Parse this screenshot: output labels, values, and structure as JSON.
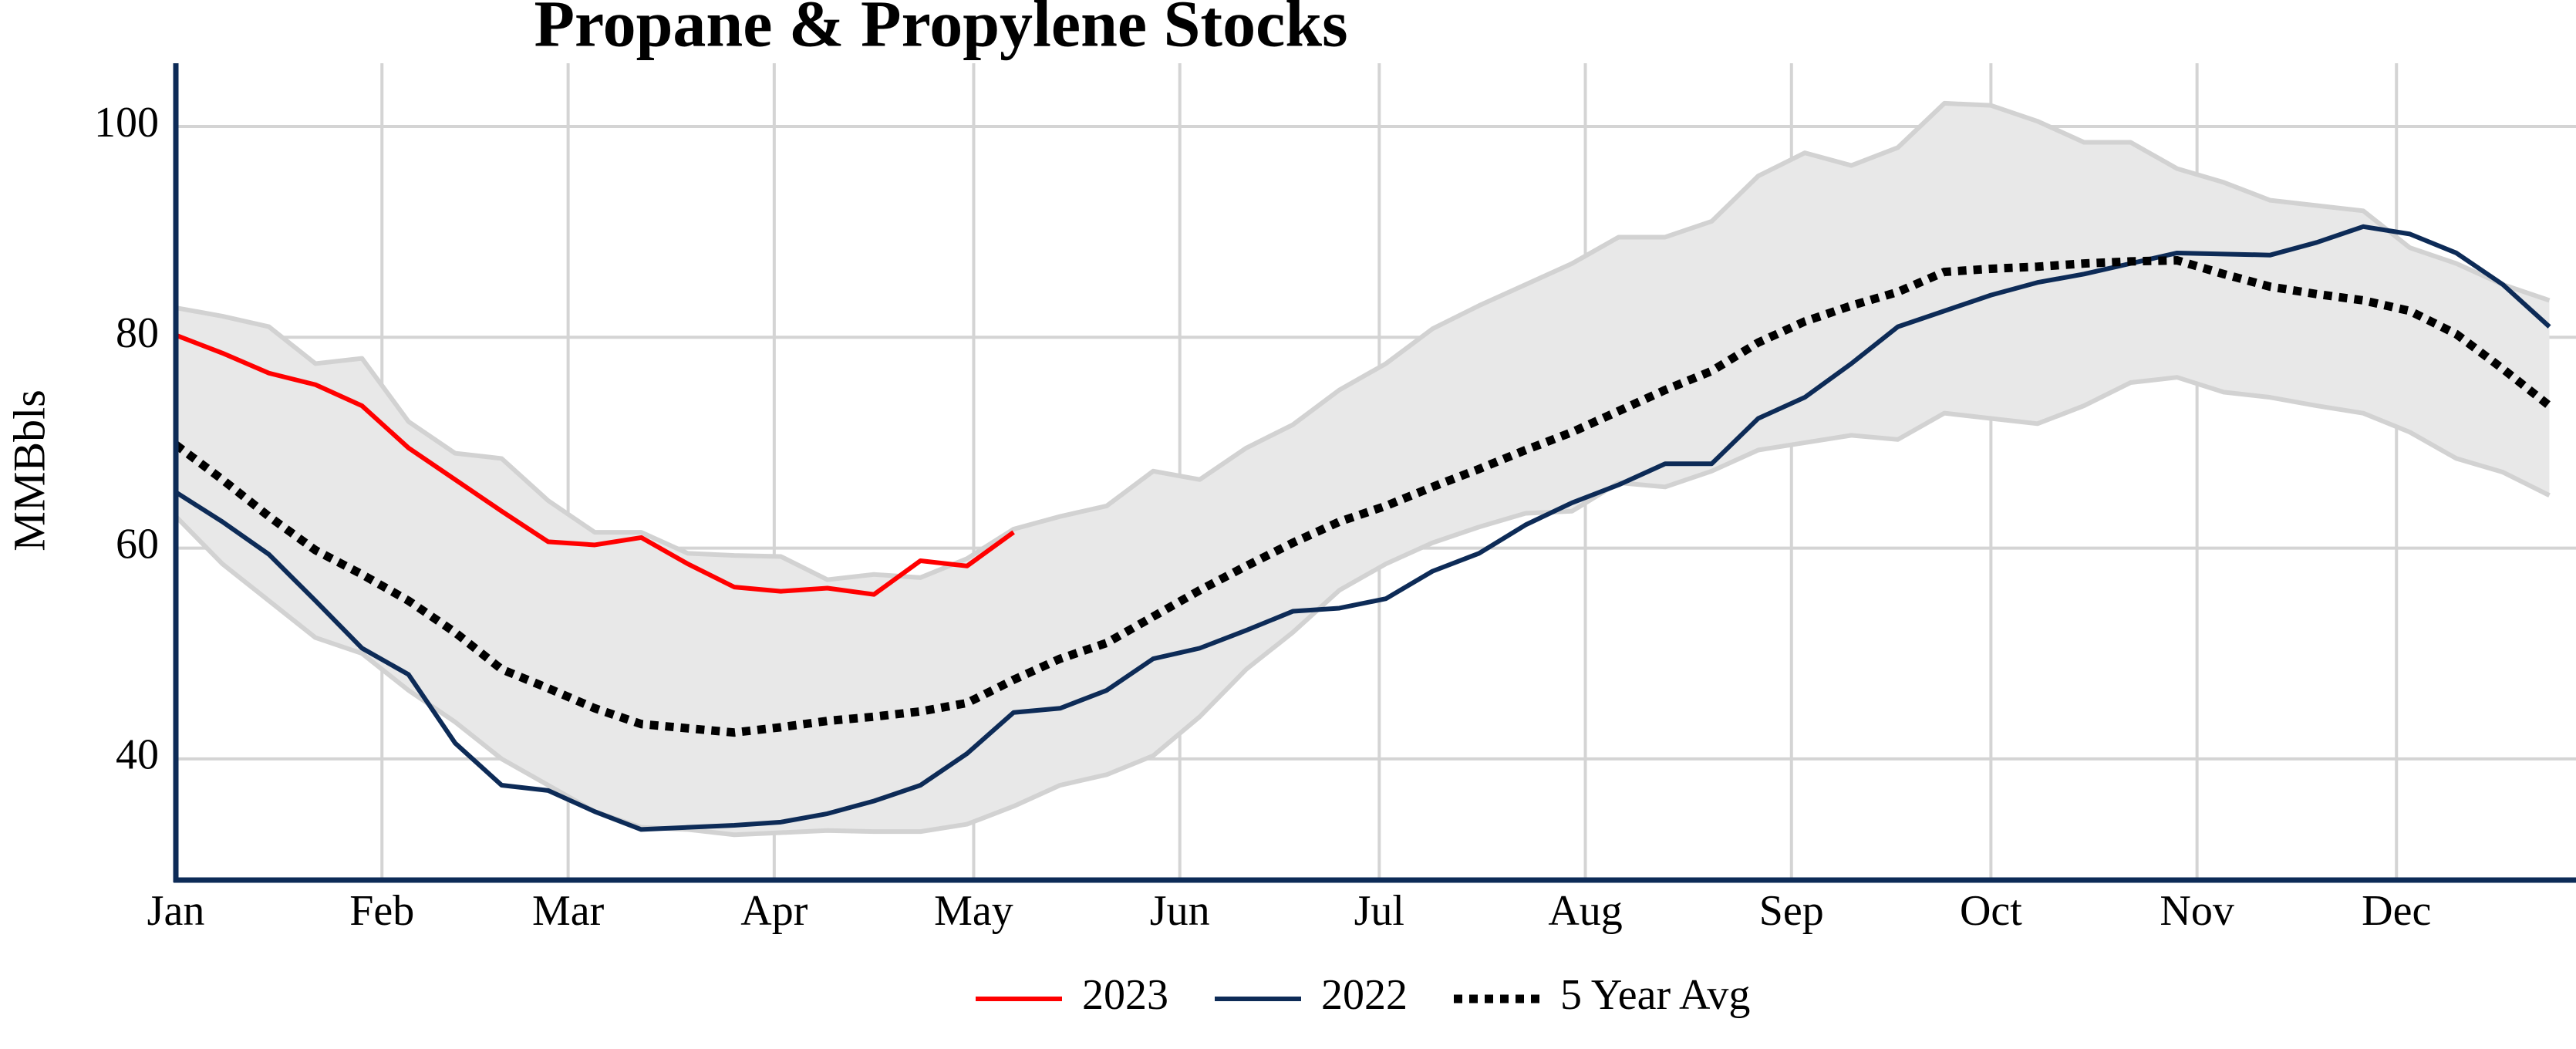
{
  "chart_data": {
    "type": "line",
    "title": "Propane & Propylene Stocks",
    "y_label": "MMBbls",
    "x": [
      1,
      8,
      15,
      22,
      29,
      36,
      43,
      50,
      57,
      64,
      71,
      78,
      85,
      92,
      99,
      106,
      113,
      120,
      127,
      134,
      141,
      148,
      155,
      162,
      169,
      176,
      183,
      190,
      197,
      204,
      211,
      218,
      225,
      232,
      239,
      246,
      253,
      260,
      267,
      274,
      281,
      288,
      295,
      302,
      309,
      316,
      323,
      330,
      337,
      344,
      351,
      358
    ],
    "xlim": [
      1,
      362
    ],
    "xticks": [
      {
        "value": 1,
        "label": "Jan"
      },
      {
        "value": 32,
        "label": "Feb"
      },
      {
        "value": 60,
        "label": "Mar"
      },
      {
        "value": 91,
        "label": "Apr"
      },
      {
        "value": 121,
        "label": "May"
      },
      {
        "value": 152,
        "label": "Jun"
      },
      {
        "value": 182,
        "label": "Jul"
      },
      {
        "value": 213,
        "label": "Aug"
      },
      {
        "value": 244,
        "label": "Sep"
      },
      {
        "value": 274,
        "label": "Oct"
      },
      {
        "value": 305,
        "label": "Nov"
      },
      {
        "value": 335,
        "label": "Dec"
      }
    ],
    "ylim": [
      28.5,
      106
    ],
    "yticks": [
      40,
      60,
      80,
      100
    ],
    "grid": true,
    "legend": "bottom",
    "range": {
      "color": "#e8e8e8",
      "edge_color": "#d2d2d2",
      "upper": [
        82.8,
        82,
        81,
        77.5,
        78,
        72,
        69,
        68.5,
        64.5,
        61.5,
        61.5,
        59.5,
        59.3,
        59.2,
        57,
        57.5,
        57.2,
        59,
        61.8,
        63,
        64,
        67.3,
        66.5,
        69.5,
        71.7,
        75,
        77.5,
        80.8,
        83,
        85,
        87,
        89.5,
        89.5,
        91,
        95.3,
        97.5,
        96.3,
        98,
        102.2,
        102,
        100.5,
        98.5,
        98.5,
        96,
        94.7,
        93,
        92.5,
        92,
        88.5,
        87,
        85,
        83.5
      ],
      "lower": [
        63,
        58.5,
        55,
        51.5,
        50,
        46.5,
        43.5,
        40,
        37.5,
        35,
        33.5,
        33.3,
        32.8,
        33,
        33.2,
        33.1,
        33.1,
        33.8,
        35.5,
        37.5,
        38.5,
        40.3,
        44,
        48.5,
        52,
        56,
        58.5,
        60.5,
        62,
        63.3,
        63.5,
        66.2,
        65.8,
        67.3,
        69.3,
        70,
        70.7,
        70.3,
        72.8,
        72.3,
        71.8,
        73.5,
        75.7,
        76.2,
        74.8,
        74.3,
        73.5,
        72.8,
        71,
        68.5,
        67.2,
        65
      ]
    },
    "series": [
      {
        "name": "2023",
        "color": "#ff0000",
        "style": "solid",
        "values": [
          80.2,
          78.5,
          76.6,
          75.5,
          73.5,
          69.5,
          66.5,
          63.5,
          60.6,
          60.3,
          61,
          58.5,
          56.3,
          55.9,
          56.2,
          55.6,
          58.8,
          58.3,
          61.5,
          null,
          null,
          null,
          null,
          null,
          null,
          null,
          null,
          null,
          null,
          null,
          null,
          null,
          null,
          null,
          null,
          null,
          null,
          null,
          null,
          null,
          null,
          null,
          null,
          null,
          null,
          null,
          null,
          null,
          null,
          null,
          null,
          null
        ]
      },
      {
        "name": "2022",
        "color": "#0d2b57",
        "style": "solid",
        "values": [
          65.3,
          62.5,
          59.4,
          55,
          50.5,
          48,
          41.5,
          37.5,
          37,
          35,
          33.3,
          33.5,
          33.7,
          34,
          34.8,
          36,
          37.5,
          40.5,
          44.4,
          44.8,
          46.5,
          49.5,
          50.5,
          52.2,
          54,
          54.3,
          55.2,
          57.8,
          59.5,
          62.2,
          64.3,
          66,
          68,
          68,
          72.3,
          74.3,
          77.5,
          81,
          82.5,
          84,
          85.2,
          86,
          87,
          88,
          87.9,
          87.8,
          89,
          90.5,
          89.8,
          88,
          85,
          81
        ]
      },
      {
        "name": "5 Year Avg",
        "color": "#000000",
        "style": "dotted",
        "values": [
          69.8,
          66.5,
          63,
          59.8,
          57.5,
          55,
          52,
          48.5,
          46.7,
          44.8,
          43.3,
          42.9,
          42.5,
          43,
          43.6,
          44,
          44.5,
          45.3,
          47.5,
          49.5,
          51,
          53.5,
          56,
          58.3,
          60.5,
          62.5,
          64,
          65.8,
          67.5,
          69.3,
          71,
          73,
          75,
          76.8,
          79.5,
          81.5,
          83,
          84.3,
          86.2,
          86.5,
          86.7,
          87,
          87.2,
          87.3,
          86,
          84.8,
          84.1,
          83.5,
          82.5,
          80.3,
          77,
          73.5
        ]
      }
    ]
  }
}
